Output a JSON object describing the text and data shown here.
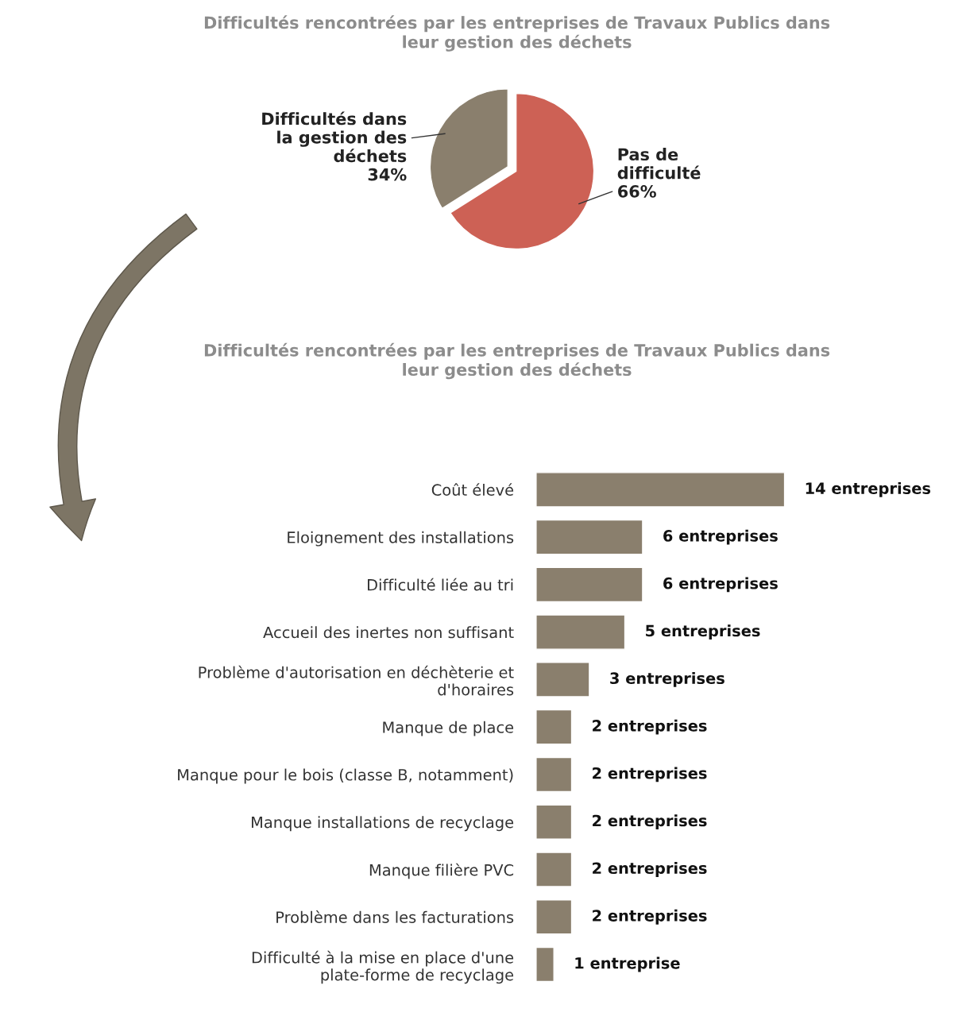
{
  "chart_data": [
    {
      "type": "pie",
      "title": "Difficultés rencontrées par les entreprises de Travaux Publics dans leur gestion des déchets",
      "categories": [
        "Pas de difficulté",
        "Difficultés dans la gestion des déchets"
      ],
      "values": [
        66,
        34
      ],
      "value_labels": [
        "66%",
        "34%"
      ],
      "colors": [
        "#cd6155",
        "#8a7f6d"
      ]
    },
    {
      "type": "bar",
      "orientation": "horizontal",
      "title": "Difficultés rencontrées par les entreprises de Travaux Publics dans leur gestion des déchets",
      "categories": [
        "Coût élevé",
        "Eloignement des installations",
        "Difficulté liée au tri",
        "Accueil des inertes non suffisant",
        "Problème d'autorisation en déchèterie et d'horaires",
        "Manque de place",
        "Manque pour le bois (classe B, notamment)",
        "Manque installations de recyclage",
        "Manque filière PVC",
        "Problème dans les facturations",
        "Difficulté à la mise en place d'une plate-forme de recyclage"
      ],
      "values": [
        14,
        6,
        6,
        5,
        3,
        2,
        2,
        2,
        2,
        2,
        1
      ],
      "value_labels": [
        "14 entreprises",
        "6 entreprises",
        "6 entreprises",
        "5 entreprises",
        "3 entreprises",
        "2 entreprises",
        "2 entreprises",
        "2 entreprises",
        "2 entreprises",
        "2 entreprises",
        "1 entreprise"
      ],
      "color": "#8a7f6d"
    }
  ]
}
